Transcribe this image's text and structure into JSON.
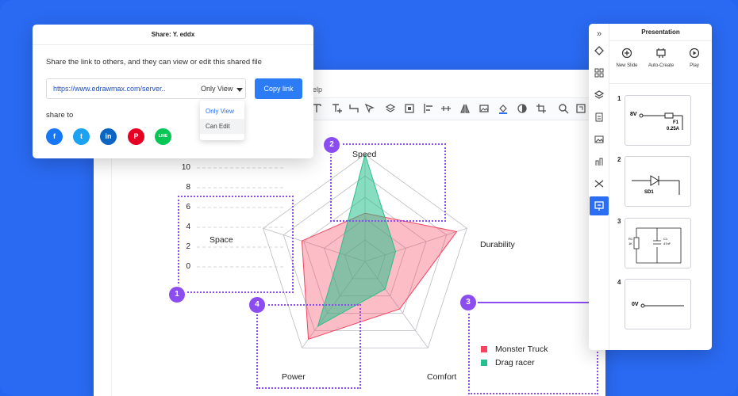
{
  "editor": {
    "menu_help": "elp"
  },
  "share": {
    "title": "Share: Y. eddx",
    "description": "Share the link to others, and they can view or edit this shared file",
    "link_url": "https://www.edrawmax.com/server..",
    "permission": "Only View",
    "copy_label": "Copy link",
    "options": [
      "Only View",
      "Can Edit"
    ],
    "share_to_label": "share to",
    "social": [
      {
        "name": "facebook",
        "glyph": "f",
        "color": "#1877f2"
      },
      {
        "name": "twitter",
        "glyph": "t",
        "color": "#1da1f2"
      },
      {
        "name": "linkedin",
        "glyph": "in",
        "color": "#0a66c2"
      },
      {
        "name": "pinterest",
        "glyph": "P",
        "color": "#e60023"
      },
      {
        "name": "line",
        "glyph": "LINE",
        "color": "#06c755"
      }
    ]
  },
  "presentation": {
    "title": "Presentation",
    "actions": [
      {
        "label": "New Slide",
        "icon": "plus-circle-icon"
      },
      {
        "label": "Auto-Create",
        "icon": "auto-create-icon"
      },
      {
        "label": "Play",
        "icon": "play-icon"
      }
    ],
    "slides": [
      {
        "num": "1",
        "label_a": "8V",
        "label_b": "F1",
        "label_c": "0.25A"
      },
      {
        "num": "2",
        "label_a": "SD1"
      },
      {
        "num": "3",
        "label_a": "R1",
        "label_b": "1K",
        "label_c": "C1",
        "label_d": "47nF"
      },
      {
        "num": "4",
        "label_a": "0V"
      }
    ]
  },
  "chart_data": {
    "type": "radar",
    "axes": [
      "Speed",
      "Durability",
      "Comfort",
      "Power",
      "Space"
    ],
    "scale_ticks": [
      "10",
      "8",
      "6",
      "4",
      "2",
      "0"
    ],
    "rmax": 10,
    "series": [
      {
        "name": "Monster Truck",
        "color": "#f7435f",
        "values": [
          4.5,
          9.0,
          5.5,
          9.0,
          6.2
        ]
      },
      {
        "name": "Drag racer",
        "color": "#27c08a",
        "values": [
          10.0,
          3.0,
          3.2,
          7.5,
          2.5
        ]
      }
    ]
  },
  "callouts": [
    "1",
    "2",
    "3",
    "4"
  ]
}
